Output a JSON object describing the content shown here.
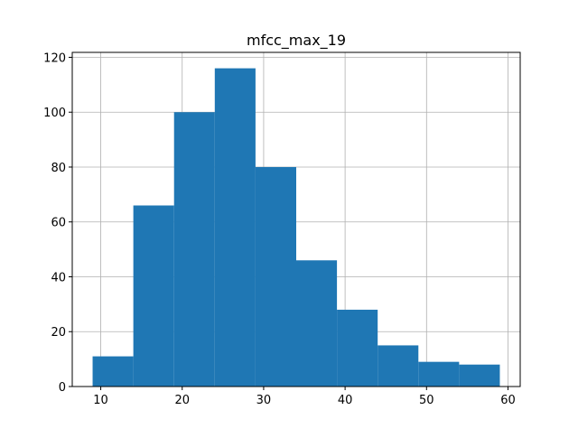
{
  "chart_data": {
    "type": "bar",
    "title": "mfcc_max_19",
    "xlabel": "",
    "ylabel": "",
    "bins": [
      {
        "x0": 9.0,
        "x1": 14.0,
        "count": 11
      },
      {
        "x0": 14.0,
        "x1": 19.0,
        "count": 66
      },
      {
        "x0": 19.0,
        "x1": 24.0,
        "count": 100
      },
      {
        "x0": 24.0,
        "x1": 29.0,
        "count": 116
      },
      {
        "x0": 29.0,
        "x1": 34.0,
        "count": 80
      },
      {
        "x0": 34.0,
        "x1": 39.0,
        "count": 46
      },
      {
        "x0": 39.0,
        "x1": 44.0,
        "count": 28
      },
      {
        "x0": 44.0,
        "x1": 49.0,
        "count": 15
      },
      {
        "x0": 49.0,
        "x1": 54.0,
        "count": 9
      },
      {
        "x0": 54.0,
        "x1": 59.0,
        "count": 8
      }
    ],
    "xlim": [
      6.5,
      61.5
    ],
    "ylim": [
      0,
      121.8
    ],
    "xticks": [
      10,
      20,
      30,
      40,
      50,
      60
    ],
    "yticks": [
      0,
      20,
      40,
      60,
      80,
      100,
      120
    ],
    "grid": true,
    "bar_color": "#1f77b4",
    "grid_color": "#b0b0b0"
  }
}
